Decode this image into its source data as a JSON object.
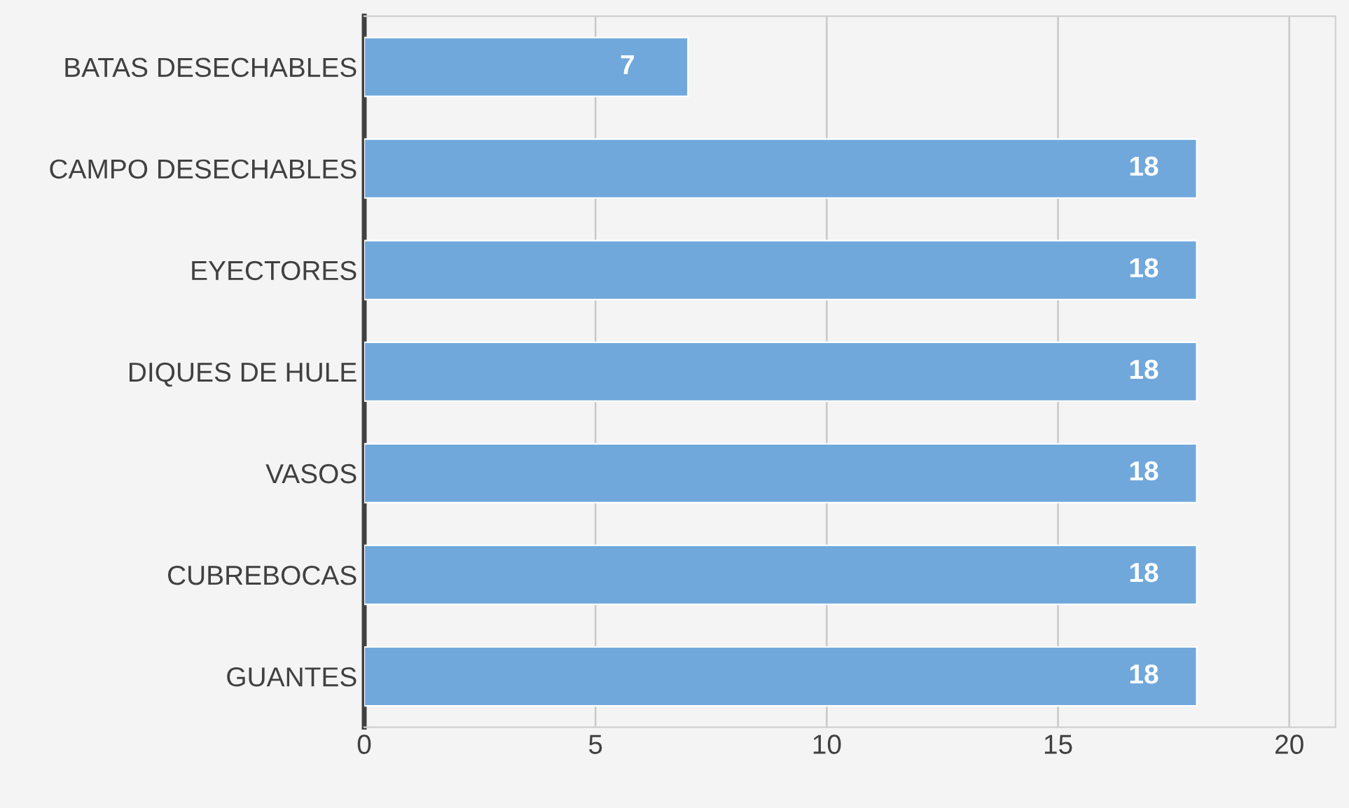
{
  "chart_data": {
    "type": "bar",
    "orientation": "horizontal",
    "categories": [
      "BATAS DESECHABLES",
      "CAMPO DESECHABLES",
      "EYECTORES",
      "DIQUES DE HULE",
      "VASOS",
      "CUBREBOCAS",
      "GUANTES"
    ],
    "values": [
      7,
      18,
      18,
      18,
      18,
      18,
      18
    ],
    "color": "#70a8dc",
    "xlim": [
      0,
      21
    ],
    "xticks": [
      0,
      5,
      10,
      15,
      20
    ],
    "grid": "x",
    "data_labels": true
  }
}
